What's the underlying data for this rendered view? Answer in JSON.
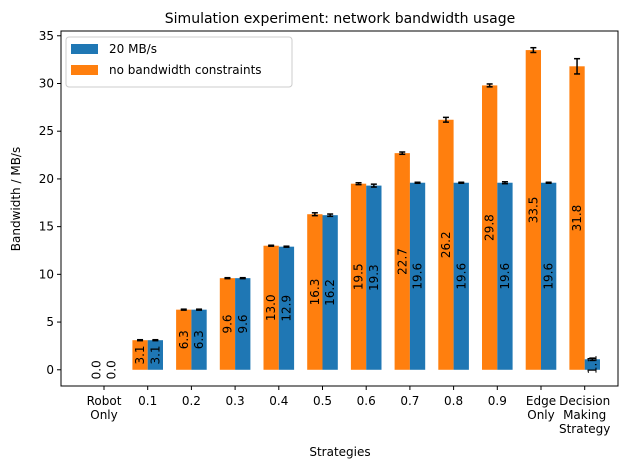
{
  "chart_data": {
    "type": "bar",
    "title": "Simulation experiment: network bandwidth usage",
    "xlabel": "Strategies",
    "ylabel": "Bandwidth / MB/s",
    "ylim": [
      -1.7,
      35.5
    ],
    "yticks": [
      0,
      5,
      10,
      15,
      20,
      25,
      30,
      35
    ],
    "categories": [
      [
        "Robot",
        "Only"
      ],
      [
        "0.1"
      ],
      [
        "0.2"
      ],
      [
        "0.3"
      ],
      [
        "0.4"
      ],
      [
        "0.5"
      ],
      [
        "0.6"
      ],
      [
        "0.7"
      ],
      [
        "0.8"
      ],
      [
        "0.9"
      ],
      [
        "Edge",
        "Only"
      ],
      [
        "Decision",
        "Making",
        "Strategy"
      ]
    ],
    "legend_position": "top-left",
    "grid": false,
    "series": [
      {
        "name": "no bandwidth constraints",
        "color": "#ff7f0e",
        "values": [
          0.0,
          3.1,
          6.3,
          9.6,
          13.0,
          16.3,
          19.5,
          22.7,
          26.2,
          29.8,
          33.5,
          31.8
        ],
        "labels": [
          "0.0",
          "3.1",
          "6.3",
          "9.6",
          "13.0",
          "16.3",
          "19.5",
          "22.7",
          "26.2",
          "29.8",
          "33.5",
          "31.8"
        ],
        "errors": [
          0,
          0.05,
          0.05,
          0.05,
          0.05,
          0.15,
          0.1,
          0.12,
          0.25,
          0.15,
          0.25,
          0.8
        ]
      },
      {
        "name": "20 MB/s",
        "color": "#1f77b4",
        "values": [
          0.0,
          3.1,
          6.3,
          9.6,
          12.9,
          16.2,
          19.3,
          19.6,
          19.6,
          19.6,
          19.6,
          1.1
        ],
        "labels": [
          "0.0",
          "3.1",
          "6.3",
          "9.6",
          "12.9",
          "16.2",
          "19.3",
          "19.6",
          "19.6",
          "19.6",
          "19.6",
          "1.1"
        ],
        "errors": [
          0,
          0.05,
          0.05,
          0.05,
          0.05,
          0.12,
          0.15,
          0.05,
          0.05,
          0.1,
          0.05,
          0.12
        ]
      }
    ],
    "legend_order": [
      1,
      0
    ]
  }
}
